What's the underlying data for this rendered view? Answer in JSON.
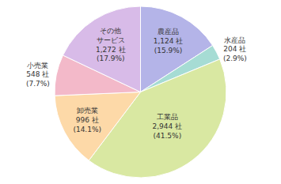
{
  "chart_data": {
    "type": "pie",
    "categories": [
      "農産品",
      "水産品",
      "工業品",
      "卸売業",
      "小売業",
      "その他\nサービス"
    ],
    "values": [
      1124,
      204,
      2944,
      996,
      548,
      1272
    ],
    "value_labels": [
      "1,124 社",
      "204 社",
      "2,944 社",
      "996 社",
      "548 社",
      "1,272 社"
    ],
    "percents": [
      15.9,
      2.9,
      41.5,
      14.1,
      7.7,
      17.9
    ],
    "percent_labels": [
      "(15.9%)",
      "(2.9%)",
      "(41.5%)",
      "(14.1%)",
      "(7.7%)",
      "(17.9%)"
    ],
    "colors": [
      "#b4b4e8",
      "#a6dcd4",
      "#d9e8a2",
      "#fdd9a8",
      "#f3b9c9",
      "#d8bbe8"
    ],
    "data_labels": true
  }
}
